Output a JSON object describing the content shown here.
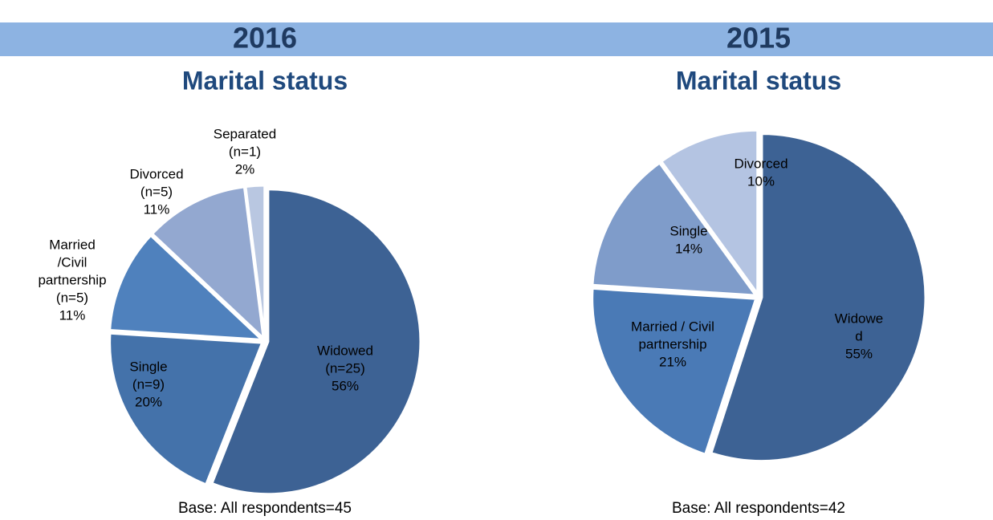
{
  "chart_data": [
    {
      "type": "pie",
      "heading": "2016",
      "title": "Marital status",
      "categories": [
        [
          "Widowed"
        ],
        [
          "Single"
        ],
        [
          "Married",
          "/Civil",
          "partnership"
        ],
        [
          "Divorced"
        ],
        [
          "Separated"
        ]
      ],
      "count_labels": [
        "(n=25)",
        "(n=9)",
        "(n=5)",
        "(n=5)",
        "(n=1)"
      ],
      "values": [
        56,
        20,
        11,
        11,
        2
      ],
      "value_labels": [
        "56%",
        "20%",
        "11%",
        "11%",
        "2%"
      ],
      "colors": [
        "#3d6294",
        "#4472aa",
        "#4f81bd",
        "#93a8d0",
        "#b9c7e1"
      ],
      "base": "Base: All respondents=45"
    },
    {
      "type": "pie",
      "heading": "2015",
      "title": "Marital status",
      "categories": [
        [
          "Widowe",
          "d"
        ],
        [
          "Married / Civil",
          "partnership"
        ],
        [
          "Single"
        ],
        [
          "Divorced"
        ]
      ],
      "values": [
        55,
        21,
        14,
        10
      ],
      "value_labels": [
        "55%",
        "21%",
        "14%",
        "10%"
      ],
      "colors": [
        "#3d6294",
        "#4a7ab6",
        "#7f9cca",
        "#b4c4e2"
      ],
      "base": "Base: All respondents=42"
    }
  ]
}
